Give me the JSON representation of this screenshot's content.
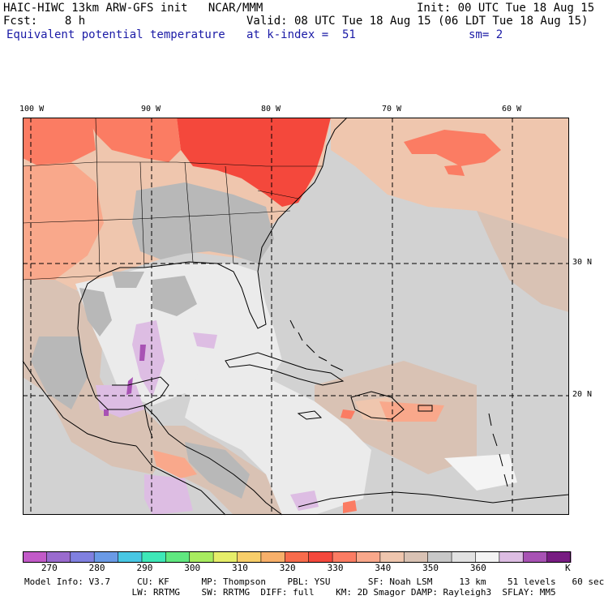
{
  "header": {
    "line1_left": "HAIC-HIWC 13km ARW-GFS init   NCAR/MMM",
    "line1_right": "Init: 00 UTC Tue 18 Aug 15",
    "line2_left": "Fcst:    8 h",
    "line2_right": "Valid: 08 UTC Tue 18 Aug 15 (06 LDT Tue 18 Aug 15)",
    "field_name": "Equivalent potential temperature",
    "level": "at k-index =  51",
    "smoothing": "sm= 2"
  },
  "map": {
    "lon_labels": [
      "100 W",
      "90 W",
      "80 W",
      "70 W",
      "60 W"
    ],
    "lat_labels": [
      "30 N",
      "20 N"
    ],
    "extent": {
      "lon": [
        -101,
        -56
      ],
      "lat": [
        12,
        42
      ]
    },
    "gridlines": "dashed",
    "palette": {
      "hot": "#f4483c",
      "warm": "#fb7c63",
      "salmon": "#f9a88b",
      "tan": "#efc6ae",
      "beige": "#d9c2b4",
      "gray": "#b8b8b8",
      "lightgray": "#d2d2d2",
      "nearwhite": "#ebebeb",
      "lavender": "#ddbde3",
      "purple": "#a852b4"
    }
  },
  "colorbar": {
    "ticks": [
      "270",
      "280",
      "290",
      "300",
      "310",
      "320",
      "330",
      "340",
      "350",
      "360"
    ],
    "unit": "K",
    "colors": [
      "#c25ac8",
      "#9a6bce",
      "#8080e0",
      "#6a9ae6",
      "#48c7e4",
      "#3ee8b8",
      "#60e880",
      "#a8ec60",
      "#e6ee6a",
      "#f8ce6a",
      "#f8b06a",
      "#f86c4c",
      "#f4483c",
      "#fb7c63",
      "#f9a88b",
      "#efc6ae",
      "#d9c2b4",
      "#c8c8c8",
      "#e2e2e2",
      "#f4f4f4",
      "#ddbde3",
      "#a852b4",
      "#781c82"
    ]
  },
  "footer": {
    "line1": "Model Info: V3.7     CU: KF      MP: Thompson    PBL: YSU       SF: Noah LSM     13 km    51 levels   60 sec",
    "line2": "                    LW: RRTMG    SW: RRTMG  DIFF: full    KM: 2D Smagor DAMP: Rayleigh3  SFLAY: MM5"
  }
}
